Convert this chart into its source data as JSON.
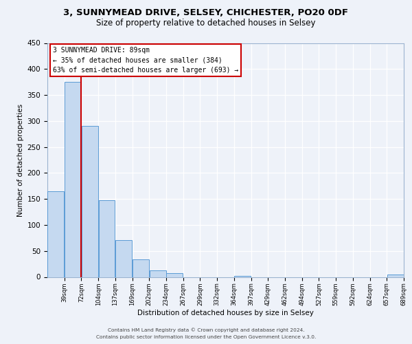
{
  "title1": "3, SUNNYMEAD DRIVE, SELSEY, CHICHESTER, PO20 0DF",
  "title2": "Size of property relative to detached houses in Selsey",
  "xlabel": "Distribution of detached houses by size in Selsey",
  "ylabel": "Number of detached properties",
  "bin_labels": [
    "39sqm",
    "72sqm",
    "104sqm",
    "137sqm",
    "169sqm",
    "202sqm",
    "234sqm",
    "267sqm",
    "299sqm",
    "332sqm",
    "364sqm",
    "397sqm",
    "429sqm",
    "462sqm",
    "494sqm",
    "527sqm",
    "559sqm",
    "592sqm",
    "624sqm",
    "657sqm",
    "689sqm"
  ],
  "bar_values": [
    165,
    375,
    290,
    148,
    71,
    34,
    13,
    7,
    0,
    0,
    0,
    2,
    0,
    0,
    0,
    0,
    0,
    0,
    0,
    0,
    4
  ],
  "bar_color": "#c5d9f0",
  "bar_edge_color": "#5b9bd5",
  "property_label": "3 SUNNYMEAD DRIVE: 89sqm",
  "annotation_line1": "← 35% of detached houses are smaller (384)",
  "annotation_line2": "63% of semi-detached houses are larger (693) →",
  "vline_color": "#cc0000",
  "vline_bin_index": 1.7,
  "ylim": [
    0,
    450
  ],
  "yticks": [
    0,
    50,
    100,
    150,
    200,
    250,
    300,
    350,
    400,
    450
  ],
  "footer1": "Contains HM Land Registry data © Crown copyright and database right 2024.",
  "footer2": "Contains public sector information licensed under the Open Government Licence v.3.0.",
  "bg_color": "#eef2f9",
  "plot_bg_color": "#eef2f9",
  "grid_color": "#ffffff",
  "box_color": "#cc0000",
  "title1_fontsize": 9.5,
  "title2_fontsize": 8.5
}
